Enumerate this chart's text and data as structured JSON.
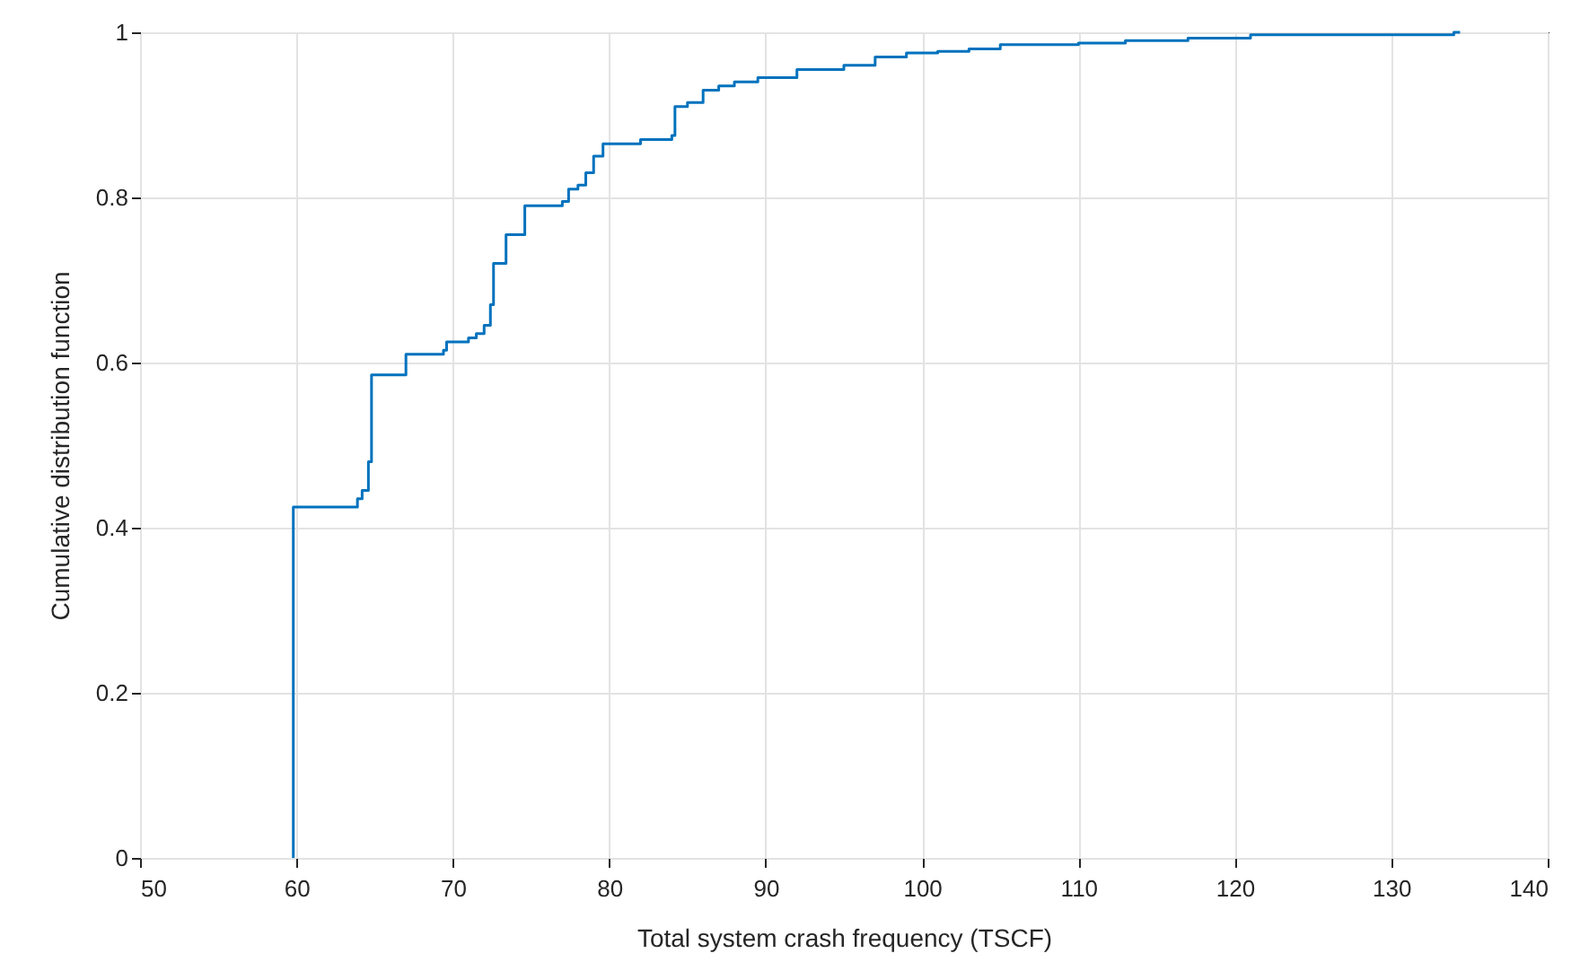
{
  "chart_data": {
    "type": "step",
    "xlabel": "Total system crash frequency (TSCF)",
    "ylabel": "Cumulative distribution function",
    "xlim": [
      50,
      140
    ],
    "xticks": [
      50,
      60,
      70,
      80,
      90,
      100,
      110,
      120,
      130,
      140
    ],
    "ylim": [
      0,
      1
    ],
    "yticks": [
      0,
      0.2,
      0.4,
      0.6,
      0.8,
      1
    ],
    "grid": true,
    "series": [
      {
        "color": "#0072bd",
        "x": [
          59.8,
          59.8,
          63.9,
          64.2,
          64.6,
          64.8,
          67,
          69.4,
          69.6,
          71,
          71.5,
          72,
          72.4,
          72.6,
          73.4,
          74.6,
          77,
          77.4,
          78,
          78.5,
          79,
          79.6,
          82,
          84,
          84.2,
          85,
          86,
          87,
          88,
          89.5,
          92,
          95,
          97,
          99,
          101,
          103,
          105,
          110,
          113,
          117,
          121,
          130,
          134,
          134.4
        ],
        "values": [
          0,
          0.425,
          0.435,
          0.445,
          0.48,
          0.585,
          0.61,
          0.615,
          0.625,
          0.63,
          0.635,
          0.645,
          0.67,
          0.72,
          0.755,
          0.79,
          0.795,
          0.81,
          0.815,
          0.83,
          0.85,
          0.865,
          0.87,
          0.875,
          0.91,
          0.915,
          0.93,
          0.935,
          0.94,
          0.945,
          0.955,
          0.96,
          0.97,
          0.975,
          0.977,
          0.98,
          0.985,
          0.987,
          0.99,
          0.993,
          0.997,
          0.997,
          1,
          1
        ]
      }
    ]
  }
}
